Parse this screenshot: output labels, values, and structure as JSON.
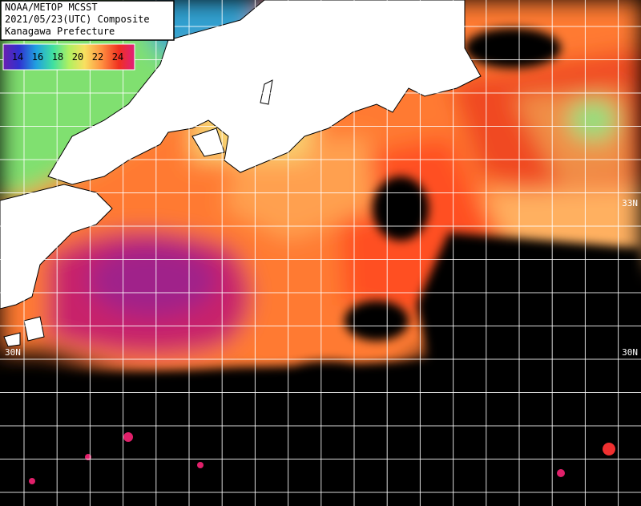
{
  "header": {
    "lines": [
      "NOAA/METOP MCSST",
      "2021/05/23(UTC) Composite",
      "Kanagawa Prefecture"
    ]
  },
  "legend": {
    "ticks": [
      14,
      16,
      18,
      20,
      22,
      24
    ]
  },
  "labels": [
    "30N",
    "33N",
    "30N"
  ]
}
